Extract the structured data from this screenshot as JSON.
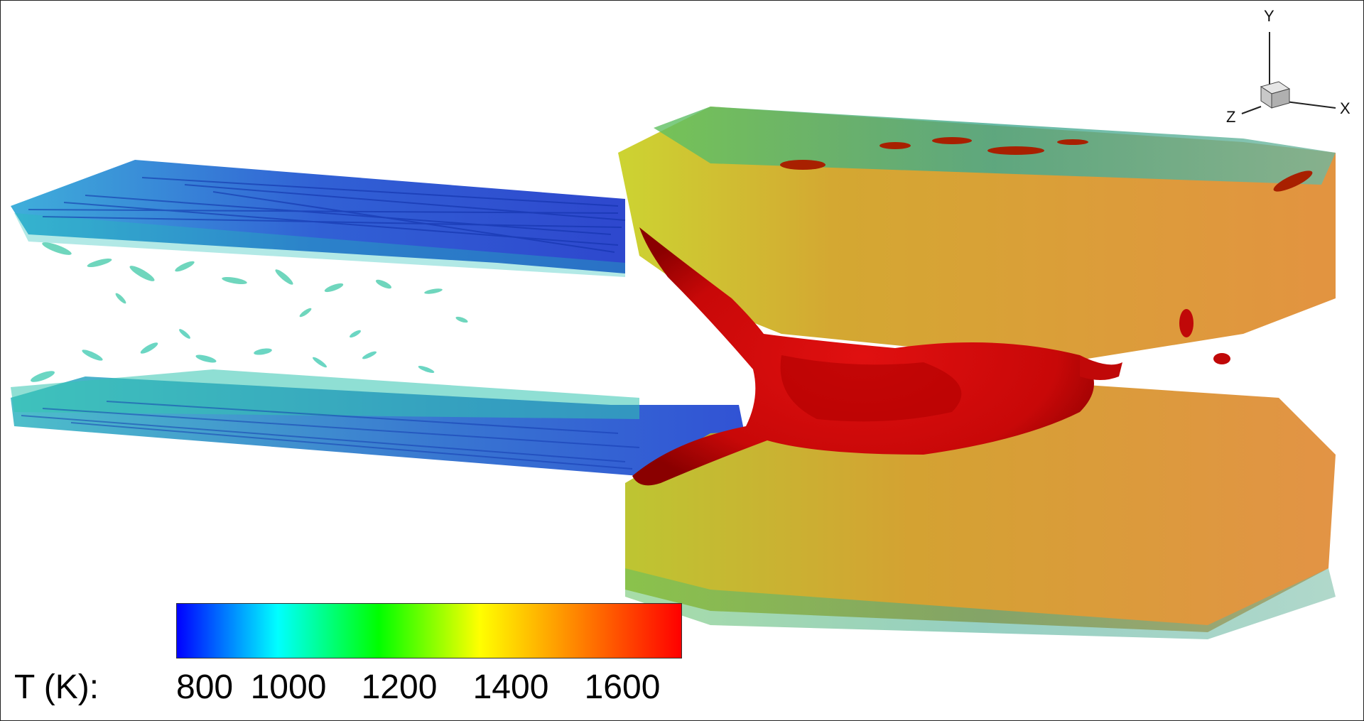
{
  "legend": {
    "title": "T (K):",
    "ticks": [
      "800",
      "1000",
      "1200",
      "1400",
      "1600"
    ],
    "colors": [
      "#0000ff",
      "#00ffff",
      "#00ff00",
      "#ffff00",
      "#ff8000",
      "#ff0000"
    ]
  },
  "axes": {
    "x": "X",
    "y": "Y",
    "z": "Z"
  },
  "scene": {
    "icons": [
      "cold-jet-isosurfaces",
      "flame-red-isosurface",
      "hot-turbulent-region"
    ]
  }
}
